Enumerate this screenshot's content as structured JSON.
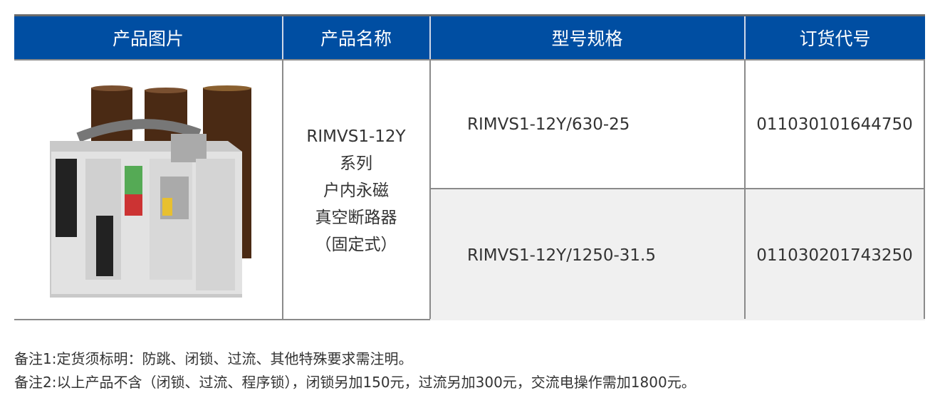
{
  "table": {
    "headers": [
      "产品图片",
      "产品名称",
      "型号规格",
      "订货代号"
    ],
    "product_name_lines": [
      "RIMVS1-12Y",
      "系列",
      "户内永磁",
      "真空断路器",
      "（固定式）"
    ],
    "rows": [
      {
        "model": "RIMVS1-12Y/630-25",
        "code": "011030101644750"
      },
      {
        "model": "RIMVS1-12Y/1250-31.5",
        "code": "011030201743250"
      }
    ]
  },
  "notes": [
    "备注1:定货须标明：防跳、闭锁、过流、其他特殊要求需注明。",
    "备注2:以上产品不含（闭锁、过流、程序锁），闭锁另加150元，过流另加300元，交流电操作需加1800元。"
  ],
  "colors": {
    "header_bg": "#004ea2",
    "alt_row_bg": "#f0f0f0"
  }
}
